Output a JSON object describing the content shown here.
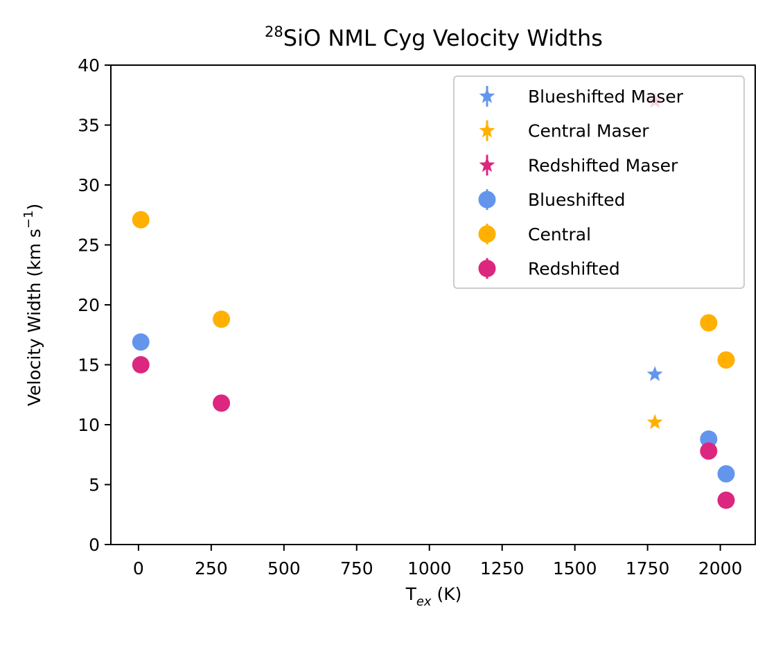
{
  "chart_data": {
    "type": "scatter",
    "title": {
      "sup": "28",
      "main": "SiO NML Cyg Velocity Widths"
    },
    "xlabel": {
      "base": "T",
      "sub": "ex",
      "rest": " (K)"
    },
    "ylabel": {
      "main": "Velocity Width (km s",
      "sup": "−1",
      "close": ")"
    },
    "xlim": [
      -95,
      2120
    ],
    "ylim": [
      0,
      40
    ],
    "xticks": [
      0,
      250,
      500,
      750,
      1000,
      1250,
      1500,
      1750,
      2000
    ],
    "xtick_labels": [
      "0",
      "250",
      "500",
      "750",
      "1000",
      "1250",
      "1500",
      "1750",
      "2000"
    ],
    "yticks": [
      0,
      5,
      10,
      15,
      20,
      25,
      30,
      35,
      40
    ],
    "ytick_labels": [
      "0",
      "5",
      "10",
      "15",
      "20",
      "25",
      "30",
      "35",
      "40"
    ],
    "legend_position": "top-right",
    "series": [
      {
        "name": "Blueshifted Maser",
        "marker": "star",
        "color": "#6495ED",
        "points": [
          {
            "x": 1775,
            "y": 14.2
          }
        ]
      },
      {
        "name": "Central Maser",
        "marker": "star",
        "color": "#FFB000",
        "points": [
          {
            "x": 1775,
            "y": 10.2
          }
        ]
      },
      {
        "name": "Redshifted Maser",
        "marker": "star",
        "color": "#DC267F",
        "points": [
          {
            "x": 1775,
            "y": 37.0
          }
        ]
      },
      {
        "name": "Blueshifted",
        "marker": "circle",
        "color": "#6495ED",
        "points": [
          {
            "x": 8,
            "y": 16.9
          },
          {
            "x": 1960,
            "y": 8.8
          },
          {
            "x": 2020,
            "y": 5.9
          }
        ]
      },
      {
        "name": "Central",
        "marker": "circle",
        "color": "#FFB000",
        "points": [
          {
            "x": 8,
            "y": 27.1
          },
          {
            "x": 285,
            "y": 18.8
          },
          {
            "x": 1960,
            "y": 18.5
          },
          {
            "x": 2020,
            "y": 15.4
          }
        ]
      },
      {
        "name": "Redshifted",
        "marker": "circle",
        "color": "#DC267F",
        "points": [
          {
            "x": 8,
            "y": 15.0
          },
          {
            "x": 285,
            "y": 11.8
          },
          {
            "x": 1960,
            "y": 7.8
          },
          {
            "x": 2020,
            "y": 3.7
          }
        ]
      }
    ]
  }
}
